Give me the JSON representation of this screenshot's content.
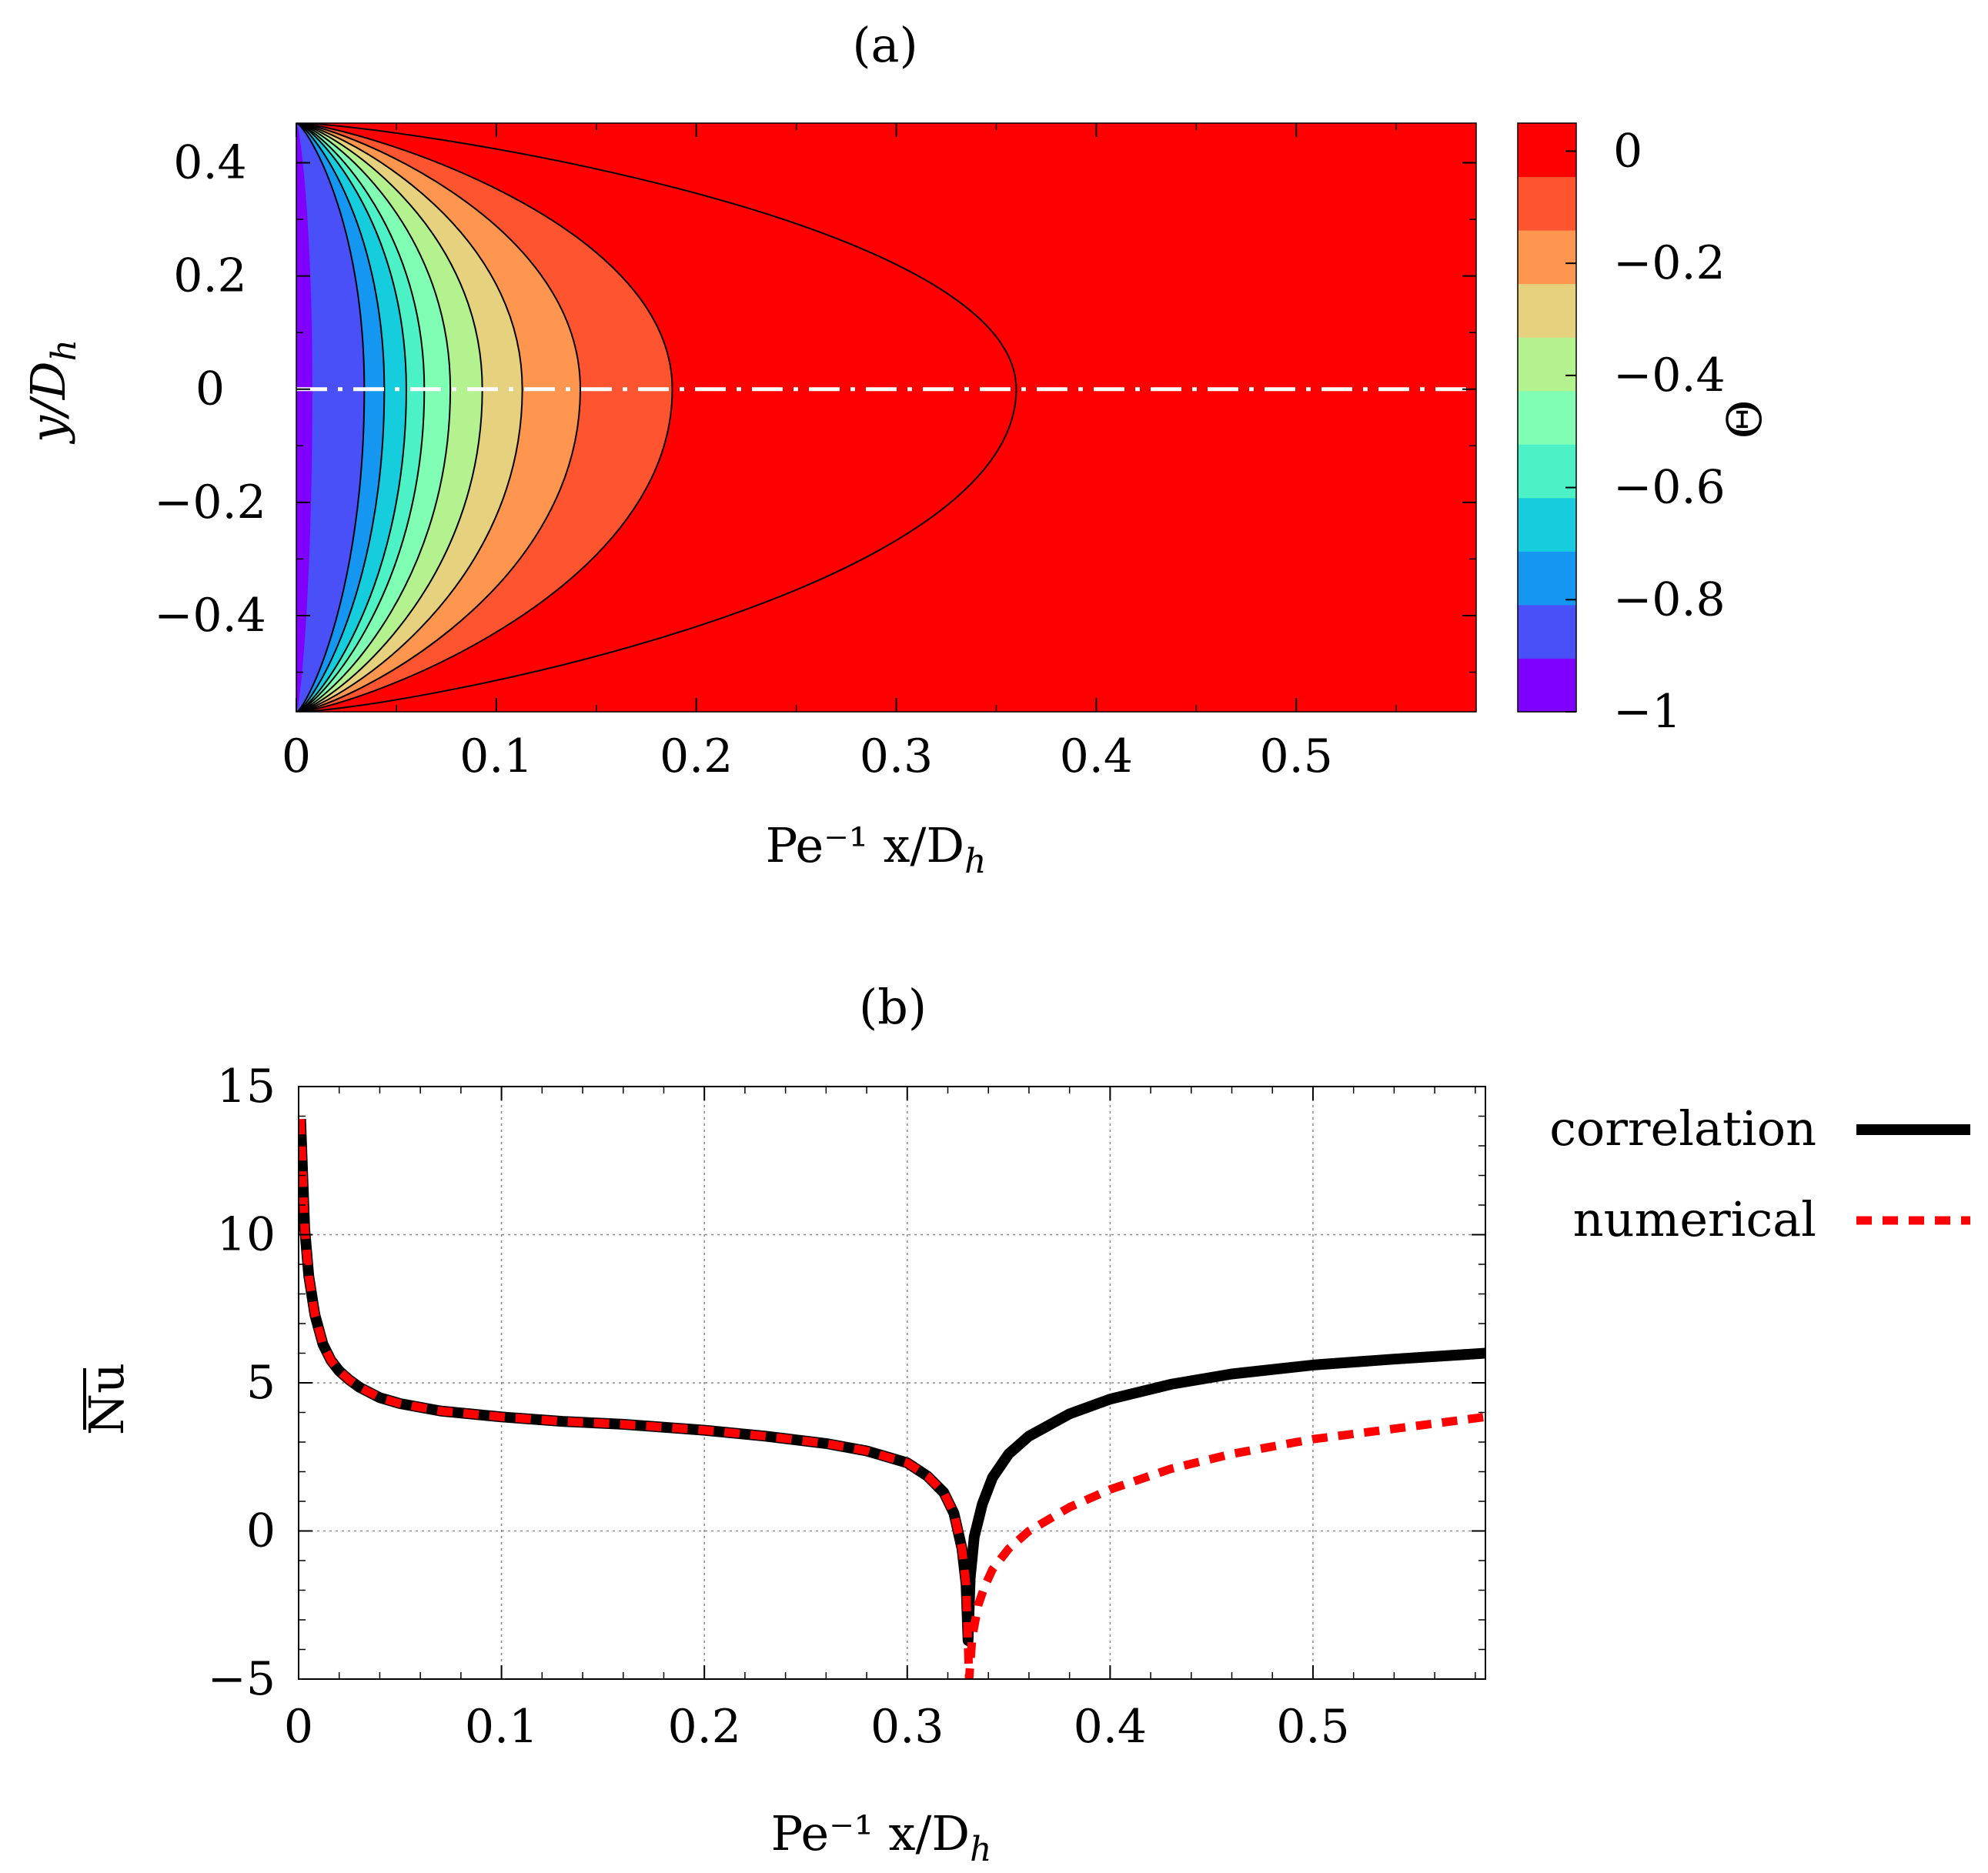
{
  "chart_data": [
    {
      "type": "heatmap",
      "panel": "(a)",
      "title": "(a)",
      "xlabel": "Pe⁻¹ x/D",
      "xlabel_sub": "h",
      "ylabel": "y/D",
      "ylabel_sub": "h",
      "xlim": [
        0,
        0.59
      ],
      "ylim": [
        -0.57,
        0.47
      ],
      "xticks": [
        0,
        0.1,
        0.2,
        0.3,
        0.4,
        0.5
      ],
      "xtick_labels": [
        "0",
        "0.1",
        "0.2",
        "0.3",
        "0.4",
        "0.5"
      ],
      "yticks": [
        0.4,
        0.2,
        0,
        -0.2,
        -0.4
      ],
      "ytick_labels": [
        "0.4",
        "0.2",
        "0",
        "−0.2",
        "−0.4"
      ],
      "colorbar": {
        "label": "Θ",
        "range": [
          -1,
          0.05
        ],
        "ticks": [
          0,
          -0.2,
          -0.4,
          -0.6,
          -0.8,
          -1
        ],
        "tick_labels": [
          "0",
          "−0.2",
          "−0.4",
          "−0.6",
          "−0.8",
          "−1"
        ],
        "levels": [
          {
            "value": -0.95,
            "color": "#8000ff"
          },
          {
            "value": -0.85,
            "color": "#4a50f7"
          },
          {
            "value": -0.75,
            "color": "#1597f1"
          },
          {
            "value": -0.65,
            "color": "#16cdde"
          },
          {
            "value": -0.55,
            "color": "#4cf1c6"
          },
          {
            "value": -0.45,
            "color": "#80ffb4"
          },
          {
            "value": -0.35,
            "color": "#b3f28e"
          },
          {
            "value": -0.25,
            "color": "#e6d17e"
          },
          {
            "value": -0.15,
            "color": "#ff9650"
          },
          {
            "value": -0.05,
            "color": "#ff5430"
          },
          {
            "value": 0.02,
            "color": "#ff0000"
          }
        ]
      },
      "contours_centerline_x": [
        0.034,
        0.044,
        0.055,
        0.064,
        0.077,
        0.093,
        0.113,
        0.142,
        0.188,
        0.36
      ],
      "centerline_y": 0
    },
    {
      "type": "line",
      "panel": "(b)",
      "title": "(b)",
      "xlabel": "Pe⁻¹ x/D",
      "xlabel_sub": "h",
      "ylabel": "Nu",
      "xlim": [
        0,
        0.585
      ],
      "ylim": [
        -5,
        15
      ],
      "xticks": [
        0,
        0.1,
        0.2,
        0.3,
        0.4,
        0.5
      ],
      "xtick_labels": [
        "0",
        "0.1",
        "0.2",
        "0.3",
        "0.4",
        "0.5"
      ],
      "yticks": [
        15,
        10,
        5,
        0,
        -5
      ],
      "ytick_labels": [
        "15",
        "10",
        "5",
        "0",
        "−5"
      ],
      "grid": true,
      "legend": "right",
      "series": [
        {
          "name": "correlation",
          "color": "#000000",
          "style": "solid",
          "x": [
            0.001,
            0.003,
            0.005,
            0.008,
            0.012,
            0.016,
            0.02,
            0.025,
            0.03,
            0.04,
            0.05,
            0.07,
            0.1,
            0.13,
            0.16,
            0.2,
            0.23,
            0.26,
            0.28,
            0.3,
            0.31,
            0.318,
            0.323,
            0.327,
            0.329,
            0.33,
            0.331,
            0.333,
            0.337,
            0.342,
            0.35,
            0.36,
            0.38,
            0.4,
            0.43,
            0.46,
            0.5,
            0.54,
            0.585
          ],
          "y": [
            13.9,
            10.2,
            8.6,
            7.3,
            6.3,
            5.75,
            5.4,
            5.1,
            4.85,
            4.5,
            4.3,
            4.05,
            3.85,
            3.7,
            3.6,
            3.4,
            3.2,
            2.95,
            2.7,
            2.3,
            1.85,
            1.3,
            0.6,
            -0.6,
            -1.8,
            -3.7,
            -1.6,
            -0.2,
            0.9,
            1.8,
            2.6,
            3.2,
            3.95,
            4.45,
            4.95,
            5.3,
            5.6,
            5.8,
            6.0
          ]
        },
        {
          "name": "numerical",
          "color": "#ff0000",
          "style": "dashed",
          "x": [
            0.001,
            0.003,
            0.005,
            0.008,
            0.012,
            0.016,
            0.02,
            0.025,
            0.03,
            0.04,
            0.05,
            0.07,
            0.1,
            0.13,
            0.16,
            0.2,
            0.23,
            0.26,
            0.28,
            0.3,
            0.31,
            0.318,
            0.323,
            0.327,
            0.329,
            0.3305,
            0.332,
            0.335,
            0.338,
            0.342,
            0.35,
            0.36,
            0.38,
            0.4,
            0.43,
            0.46,
            0.5,
            0.54,
            0.585
          ],
          "y": [
            13.9,
            10.2,
            8.6,
            7.3,
            6.3,
            5.75,
            5.4,
            5.1,
            4.85,
            4.5,
            4.3,
            4.05,
            3.85,
            3.7,
            3.6,
            3.4,
            3.2,
            2.95,
            2.7,
            2.3,
            1.85,
            1.3,
            0.6,
            -0.6,
            -1.8,
            -5.0,
            -3.6,
            -2.5,
            -1.9,
            -1.3,
            -0.6,
            0.0,
            0.8,
            1.4,
            2.1,
            2.6,
            3.1,
            3.45,
            3.85
          ]
        }
      ]
    }
  ]
}
